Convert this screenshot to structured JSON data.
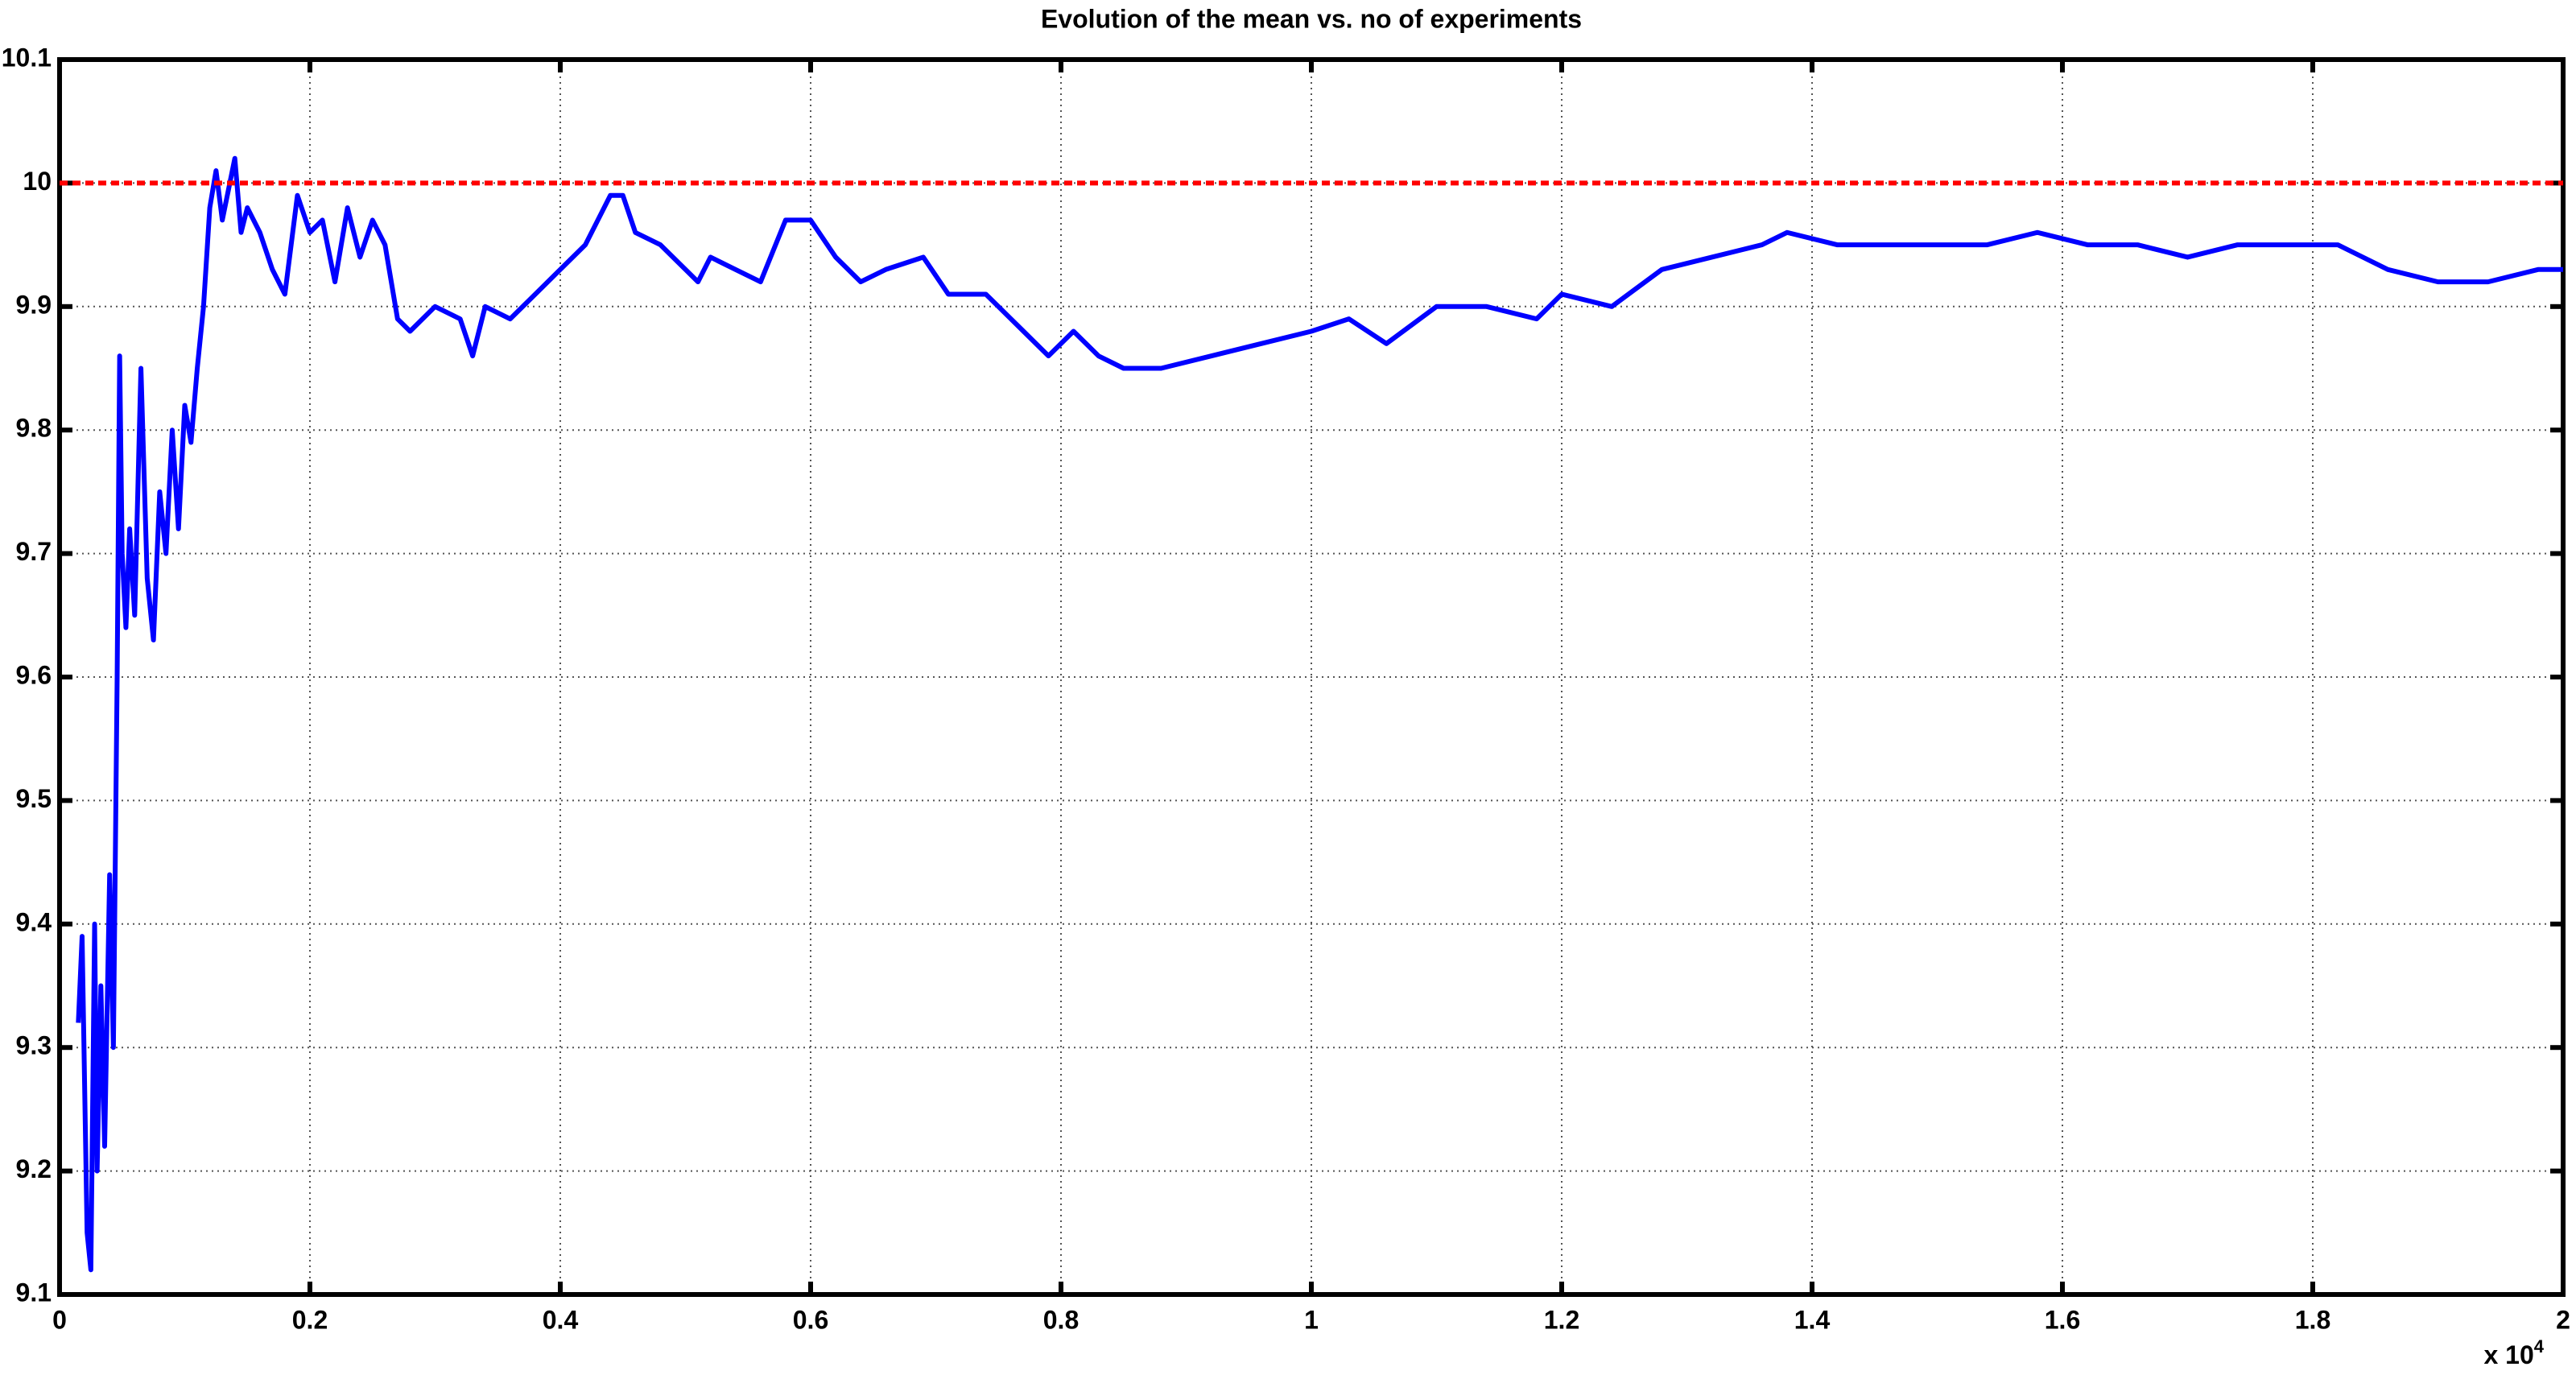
{
  "chart_data": {
    "type": "line",
    "title": "Evolution of the mean vs. no of experiments",
    "x_multiplier": {
      "base": "x 10",
      "exponent": "4"
    },
    "xlim": [
      0,
      2
    ],
    "xticks": [
      0,
      0.2,
      0.4,
      0.6,
      0.8,
      1,
      1.2,
      1.4,
      1.6,
      1.8,
      2
    ],
    "ylim": [
      9.1,
      10.1
    ],
    "yticks": [
      9.1,
      9.2,
      9.3,
      9.4,
      9.5,
      9.6,
      9.7,
      9.8,
      9.9,
      10,
      10.1
    ],
    "grid": true,
    "series": [
      {
        "color": "#0000ff",
        "dash": false,
        "x": [
          0.015,
          0.018,
          0.022,
          0.025,
          0.028,
          0.03,
          0.033,
          0.036,
          0.04,
          0.043,
          0.046,
          0.048,
          0.05,
          0.053,
          0.056,
          0.06,
          0.065,
          0.07,
          0.075,
          0.08,
          0.085,
          0.09,
          0.095,
          0.1,
          0.105,
          0.11,
          0.115,
          0.12,
          0.125,
          0.13,
          0.14,
          0.145,
          0.15,
          0.16,
          0.17,
          0.18,
          0.19,
          0.2,
          0.21,
          0.22,
          0.23,
          0.24,
          0.25,
          0.26,
          0.27,
          0.28,
          0.3,
          0.32,
          0.33,
          0.34,
          0.36,
          0.38,
          0.4,
          0.42,
          0.43,
          0.44,
          0.45,
          0.46,
          0.48,
          0.5,
          0.51,
          0.52,
          0.54,
          0.56,
          0.58,
          0.6,
          0.62,
          0.64,
          0.66,
          0.69,
          0.71,
          0.74,
          0.76,
          0.79,
          0.81,
          0.83,
          0.85,
          0.88,
          0.92,
          0.96,
          1,
          1.03,
          1.06,
          1.1,
          1.14,
          1.18,
          1.2,
          1.24,
          1.28,
          1.32,
          1.36,
          1.38,
          1.42,
          1.46,
          1.5,
          1.54,
          1.58,
          1.62,
          1.66,
          1.7,
          1.74,
          1.78,
          1.82,
          1.86,
          1.9,
          1.94,
          1.98,
          2
        ],
        "values": [
          9.32,
          9.39,
          9.15,
          9.12,
          9.4,
          9.2,
          9.35,
          9.22,
          9.44,
          9.3,
          9.6,
          9.86,
          9.7,
          9.64,
          9.72,
          9.65,
          9.85,
          9.68,
          9.63,
          9.75,
          9.7,
          9.8,
          9.72,
          9.82,
          9.79,
          9.85,
          9.9,
          9.98,
          10.01,
          9.97,
          10.02,
          9.96,
          9.98,
          9.96,
          9.93,
          9.91,
          9.99,
          9.96,
          9.97,
          9.92,
          9.98,
          9.94,
          9.97,
          9.95,
          9.89,
          9.88,
          9.9,
          9.89,
          9.86,
          9.9,
          9.89,
          9.91,
          9.93,
          9.95,
          9.97,
          9.99,
          9.99,
          9.96,
          9.95,
          9.93,
          9.92,
          9.94,
          9.93,
          9.92,
          9.97,
          9.97,
          9.94,
          9.92,
          9.93,
          9.94,
          9.91,
          9.91,
          9.89,
          9.86,
          9.88,
          9.86,
          9.85,
          9.85,
          9.86,
          9.87,
          9.88,
          9.89,
          9.87,
          9.9,
          9.9,
          9.89,
          9.91,
          9.9,
          9.93,
          9.94,
          9.95,
          9.96,
          9.95,
          9.95,
          9.95,
          9.95,
          9.96,
          9.95,
          9.95,
          9.94,
          9.95,
          9.95,
          9.95,
          9.93,
          9.92,
          9.92,
          9.93,
          9.93
        ]
      },
      {
        "color": "#ff0000",
        "dash": true,
        "x": [
          0,
          2
        ],
        "values": [
          10,
          10
        ]
      }
    ]
  }
}
